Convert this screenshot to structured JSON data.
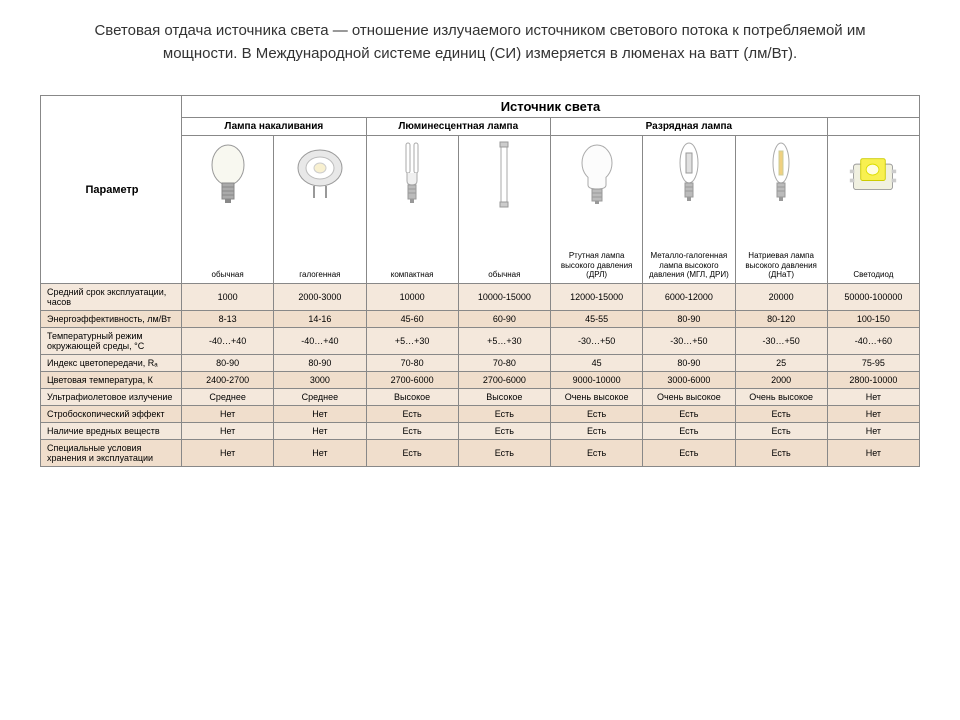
{
  "title": "Световая отдача источника света — отношение излучаемого источником светового потока к потребляемой им мощности. В Международной системе единиц (СИ) измеряется в люменах на ватт (лм/Вт).",
  "headers": {
    "main": "Источник света",
    "param": "Параметр",
    "g1": "Лампа накаливания",
    "g2": "Люминесцентная лампа",
    "g3": "Разрядная лампа"
  },
  "cols": {
    "c1": "обычная",
    "c2": "галогенная",
    "c3": "компактная",
    "c4": "обычная",
    "c5": "Ртутная лампа высокого давления (ДРЛ)",
    "c6": "Металло-галогенная лампа высокого давления (МГЛ, ДРИ)",
    "c7": "Натриевая лампа высокого давления (ДНаТ)",
    "c8": "Светодиод"
  },
  "rows": [
    {
      "label": "Средний срок эксплуатации, часов",
      "v": [
        "1000",
        "2000-3000",
        "10000",
        "10000-15000",
        "12000-15000",
        "6000-12000",
        "20000",
        "50000-100000"
      ]
    },
    {
      "label": "Энергоэффективность, лм/Вт",
      "v": [
        "8-13",
        "14-16",
        "45-60",
        "60-90",
        "45-55",
        "80-90",
        "80-120",
        "100-150"
      ]
    },
    {
      "label": "Температурный режим окружающей среды, °C",
      "v": [
        "-40…+40",
        "-40…+40",
        "+5…+30",
        "+5…+30",
        "-30…+50",
        "-30…+50",
        "-30…+50",
        "-40…+60"
      ]
    },
    {
      "label": "Индекс цветопередачи, Rₐ",
      "v": [
        "80-90",
        "80-90",
        "70-80",
        "70-80",
        "45",
        "80-90",
        "25",
        "75-95"
      ]
    },
    {
      "label": "Цветовая температура, К",
      "v": [
        "2400-2700",
        "3000",
        "2700-6000",
        "2700-6000",
        "9000-10000",
        "3000-6000",
        "2000",
        "2800-10000"
      ]
    },
    {
      "label": "Ультрафиолетовое излучение",
      "v": [
        "Среднее",
        "Среднее",
        "Высокое",
        "Высокое",
        "Очень высокое",
        "Очень высокое",
        "Очень высокое",
        "Нет"
      ]
    },
    {
      "label": "Стробоскопический эффект",
      "v": [
        "Нет",
        "Нет",
        "Есть",
        "Есть",
        "Есть",
        "Есть",
        "Есть",
        "Нет"
      ]
    },
    {
      "label": "Наличие вредных веществ",
      "v": [
        "Нет",
        "Нет",
        "Есть",
        "Есть",
        "Есть",
        "Есть",
        "Есть",
        "Нет"
      ]
    },
    {
      "label": "Специальные условия хранения и эксплуатации",
      "v": [
        "Нет",
        "Нет",
        "Есть",
        "Есть",
        "Есть",
        "Есть",
        "Есть",
        "Нет"
      ]
    }
  ],
  "shades": [
    "shade-light",
    "shade-dark",
    "shade-light",
    "shade-light",
    "shade-dark",
    "shade-light",
    "shade-dark",
    "shade-light",
    "shade-dark"
  ]
}
